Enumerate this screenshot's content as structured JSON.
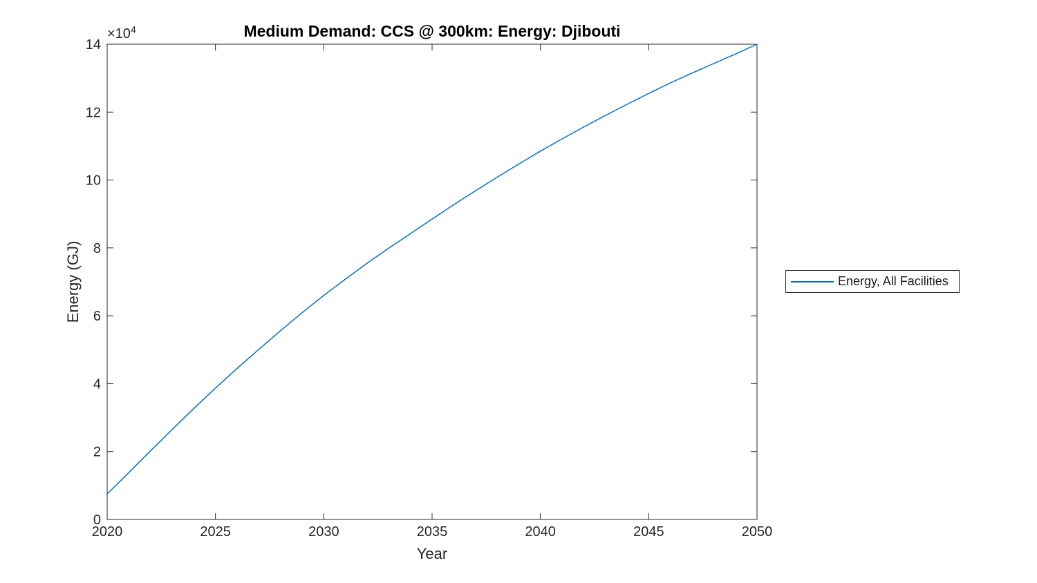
{
  "chart_data": {
    "type": "line",
    "title": "Medium Demand: CCS @ 300km: Energy: Djibouti",
    "xlabel": "Year",
    "ylabel": "Energy (GJ)",
    "y_axis_multiplier": {
      "base": "×10",
      "exponent": "4"
    },
    "xlim": [
      2020,
      2050
    ],
    "ylim": [
      0,
      140000
    ],
    "x_ticks": [
      2020,
      2025,
      2030,
      2035,
      2040,
      2045,
      2050
    ],
    "y_ticks": [
      0,
      2,
      4,
      6,
      8,
      10,
      12,
      14
    ],
    "y_tick_scale": 10000,
    "grid": false,
    "box": true,
    "axis_color": "#262626",
    "legend": {
      "position": "outside-right",
      "entries": [
        "Energy, All Facilities"
      ]
    },
    "series": [
      {
        "name": "Energy, All Facilities",
        "color": "#0072BD",
        "x": [
          2020,
          2021,
          2022,
          2023,
          2024,
          2025,
          2026,
          2027,
          2028,
          2029,
          2030,
          2031,
          2032,
          2033,
          2034,
          2035,
          2036,
          2037,
          2038,
          2039,
          2040,
          2041,
          2042,
          2043,
          2044,
          2045,
          2046,
          2047,
          2048,
          2049,
          2050
        ],
        "values_gj": [
          7500,
          13800,
          20200,
          26500,
          32700,
          38700,
          44500,
          50100,
          55600,
          60900,
          66000,
          70800,
          75500,
          79900,
          84200,
          88500,
          92700,
          96800,
          100800,
          104700,
          108500,
          112100,
          115600,
          119000,
          122300,
          125500,
          128600,
          131500,
          134300,
          137100,
          140000
        ]
      }
    ]
  }
}
